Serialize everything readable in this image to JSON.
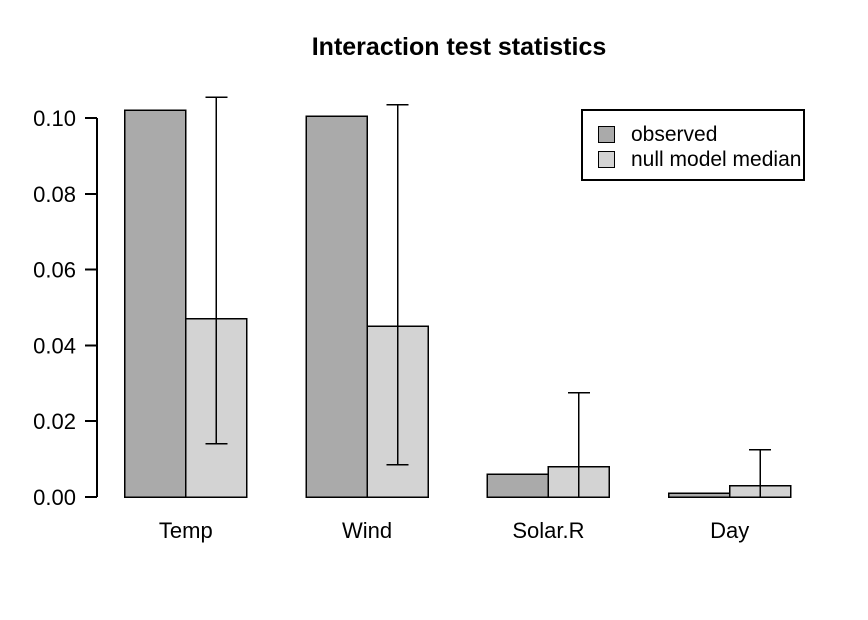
{
  "chart_data": {
    "type": "bar",
    "title": "Interaction test statistics",
    "categories": [
      "Temp",
      "Wind",
      "Solar.R",
      "Day"
    ],
    "series": [
      {
        "name": "observed",
        "color": "#AAAAAA",
        "values": [
          0.102,
          0.1005,
          0.006,
          0.001
        ]
      },
      {
        "name": "null model median",
        "color": "#D3D3D3",
        "values": [
          0.047,
          0.045,
          0.008,
          0.003
        ]
      }
    ],
    "error_bars": {
      "on_series": "null model median",
      "low": [
        0.014,
        0.0085,
        0.0,
        0.0
      ],
      "high": [
        0.1055,
        0.1035,
        0.0275,
        0.0125
      ]
    },
    "ylim": [
      0,
      0.1
    ],
    "yticks": [
      0,
      0.02,
      0.04,
      0.06,
      0.08,
      0.1
    ],
    "ytick_labels": [
      "0.00",
      "0.02",
      "0.04",
      "0.06",
      "0.08",
      "0.10"
    ],
    "xlabel": "",
    "ylabel": "",
    "grid": false,
    "legend_position": "top-right",
    "bar_border_color": "#000000",
    "axis_color": "#000000",
    "background_color": "#FFFFFF"
  }
}
